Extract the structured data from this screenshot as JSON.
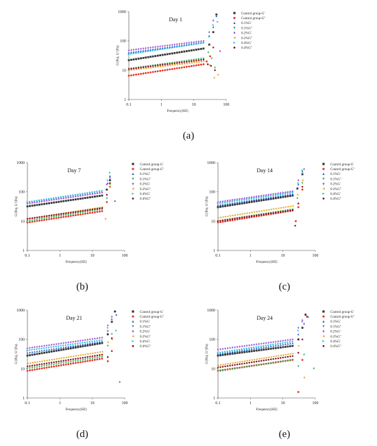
{
  "figure": {
    "captions": [
      "(a)",
      "(b)",
      "(c)",
      "(d)",
      "(e)"
    ]
  },
  "legend_entries": [
    {
      "label": "Control group-G'",
      "color": "#333333",
      "marker": "square"
    },
    {
      "label": "Control group-G''",
      "color": "#e8342a",
      "marker": "circle"
    },
    {
      "label": "0.1%G'",
      "color": "#1f5fc4",
      "marker": "triangle-up"
    },
    {
      "label": "0.1%G''",
      "color": "#22b14c",
      "marker": "triangle-down"
    },
    {
      "label": "0.2%G'",
      "color": "#a35bd6",
      "marker": "diamond"
    },
    {
      "label": "0.2%G''",
      "color": "#e0a21c",
      "marker": "triangle-left"
    },
    {
      "label": "0.4%G'",
      "color": "#22bde0",
      "marker": "triangle-right"
    },
    {
      "label": "0.4%G''",
      "color": "#8b1a2a",
      "marker": "hexagon"
    }
  ],
  "chart_data": [
    {
      "type": "scatter",
      "title": "Day 1",
      "xlabel": "Frequency(HZ)",
      "ylabel": "G'(Pa), G''(Pa)",
      "xscale": "log",
      "yscale": "log",
      "xlim": [
        0.1,
        100
      ],
      "ylim": [
        1,
        1000
      ],
      "xticks": [
        "0.1",
        "1",
        "10",
        "100"
      ],
      "yticks": [
        "1",
        "10",
        "100",
        "1000"
      ],
      "legend_position": "top-right",
      "series": [
        {
          "name": "Control group-G'",
          "low": 22,
          "high": 55,
          "tail": [
            [
              30,
              75
            ],
            [
              40,
              200
            ],
            [
              50,
              800
            ]
          ]
        },
        {
          "name": "Control group-G''",
          "low": 6.5,
          "high": 16,
          "tail": [
            [
              25,
              20
            ],
            [
              32,
              30
            ],
            [
              40,
              60
            ]
          ]
        },
        {
          "name": "0.1%G'",
          "low": 40,
          "high": 90,
          "tail": [
            [
              30,
              150
            ],
            [
              40,
              300
            ],
            [
              50,
              700
            ]
          ]
        },
        {
          "name": "0.1%G''",
          "low": 11,
          "high": 25,
          "tail": [
            [
              28,
              40
            ],
            [
              36,
              25
            ],
            [
              45,
              12
            ]
          ]
        },
        {
          "name": "0.2%G'",
          "low": 48,
          "high": 100,
          "tail": [
            [
              30,
              200
            ],
            [
              40,
              500
            ],
            [
              65,
              45
            ]
          ]
        },
        {
          "name": "0.2%G''",
          "low": 10,
          "high": 20,
          "tail": [
            [
              30,
              15
            ],
            [
              42,
              5.5
            ],
            [
              55,
              7
            ]
          ]
        },
        {
          "name": "0.4%G'",
          "low": 35,
          "high": 85,
          "tail": [
            [
              30,
              140
            ],
            [
              40,
              350
            ],
            [
              55,
              450
            ]
          ]
        },
        {
          "name": "0.4%G''",
          "low": 11,
          "high": 23,
          "tail": [
            [
              27,
              16
            ],
            [
              34,
              14
            ],
            [
              45,
              10
            ]
          ]
        }
      ]
    },
    {
      "type": "scatter",
      "title": "Day 7",
      "xlabel": "Frequency(HZ)",
      "ylabel": "G'(Pa), G''(Pa)",
      "xscale": "log",
      "yscale": "log",
      "xlim": [
        0.1,
        100
      ],
      "ylim": [
        1,
        1000
      ],
      "xticks": [
        "0.1",
        "1",
        "10",
        "100"
      ],
      "yticks": [
        "1",
        "10",
        "100",
        "1000"
      ],
      "legend_position": "top-right",
      "series": [
        {
          "name": "Control group-G'",
          "low": 32,
          "high": 75,
          "tail": [
            [
              28,
              120
            ],
            [
              35,
              250
            ]
          ]
        },
        {
          "name": "Control group-G''",
          "low": 9,
          "high": 22,
          "tail": [
            [
              28,
              45
            ],
            [
              35,
              150
            ]
          ]
        },
        {
          "name": "0.1%G'",
          "low": 42,
          "high": 100,
          "tail": [
            [
              30,
              200
            ],
            [
              35,
              350
            ],
            [
              50,
              50
            ]
          ]
        },
        {
          "name": "0.1%G''",
          "low": 10,
          "high": 25,
          "tail": [
            [
              28,
              60
            ],
            [
              35,
              180
            ]
          ]
        },
        {
          "name": "0.2%G'",
          "low": 40,
          "high": 95,
          "tail": [
            [
              28,
              180
            ],
            [
              35,
              300
            ]
          ]
        },
        {
          "name": "0.2%G''",
          "low": 12,
          "high": 30,
          "tail": [
            [
              25,
              12
            ],
            [
              35,
              150
            ]
          ]
        },
        {
          "name": "0.4%G'",
          "low": 45,
          "high": 110,
          "tail": [
            [
              30,
              250
            ],
            [
              35,
              450
            ]
          ]
        },
        {
          "name": "0.4%G''",
          "low": 12,
          "high": 28,
          "tail": [
            [
              28,
              80
            ],
            [
              35,
              200
            ]
          ]
        }
      ]
    },
    {
      "type": "scatter",
      "title": "Day 14",
      "xlabel": "Frequency(HZ)",
      "ylabel": "G'(Pa), G''(Pa)",
      "xscale": "log",
      "yscale": "log",
      "xlim": [
        0.1,
        100
      ],
      "ylim": [
        1,
        1000
      ],
      "xticks": [
        "0.1",
        "1",
        "10",
        "100"
      ],
      "yticks": [
        "1",
        "10",
        "100",
        "1000"
      ],
      "legend_position": "top-right",
      "series": [
        {
          "name": "Control group-G'",
          "low": 30,
          "high": 75,
          "tail": [
            [
              28,
              130
            ],
            [
              40,
              400
            ]
          ]
        },
        {
          "name": "Control group-G''",
          "low": 9,
          "high": 23,
          "tail": [
            [
              25,
              10
            ],
            [
              30,
              30
            ],
            [
              40,
              120
            ]
          ]
        },
        {
          "name": "0.1%G'",
          "low": 35,
          "high": 85,
          "tail": [
            [
              30,
              180
            ],
            [
              40,
              500
            ]
          ]
        },
        {
          "name": "0.1%G''",
          "low": 10,
          "high": 25,
          "tail": [
            [
              28,
              60
            ],
            [
              40,
              200
            ]
          ]
        },
        {
          "name": "0.2%G'",
          "low": 45,
          "high": 105,
          "tail": [
            [
              30,
              250
            ],
            [
              45,
              600
            ]
          ]
        },
        {
          "name": "0.2%G''",
          "low": 13,
          "high": 33,
          "tail": [
            [
              28,
              80
            ],
            [
              40,
              250
            ]
          ]
        },
        {
          "name": "0.4%G'",
          "low": 40,
          "high": 95,
          "tail": [
            [
              30,
              200
            ],
            [
              40,
              550
            ]
          ]
        },
        {
          "name": "0.4%G''",
          "low": 10,
          "high": 24,
          "tail": [
            [
              24,
              7
            ],
            [
              30,
              40
            ],
            [
              40,
              150
            ]
          ]
        }
      ]
    },
    {
      "type": "scatter",
      "title": "Day 21",
      "xlabel": "Frequency(HZ)",
      "ylabel": "G'(Pa), G''(Pa)",
      "xscale": "log",
      "yscale": "log",
      "xlim": [
        0.1,
        100
      ],
      "ylim": [
        1,
        1000
      ],
      "xticks": [
        "0.1",
        "1",
        "10",
        "100"
      ],
      "yticks": [
        "1",
        "10",
        "100",
        "1000"
      ],
      "legend_position": "top-right",
      "series": [
        {
          "name": "Control group-G'",
          "low": 28,
          "high": 75,
          "tail": [
            [
              30,
              150
            ],
            [
              40,
              400
            ],
            [
              50,
              900
            ]
          ]
        },
        {
          "name": "Control group-G''",
          "low": 8.5,
          "high": 22,
          "tail": [
            [
              30,
              18
            ],
            [
              40,
              40
            ]
          ]
        },
        {
          "name": "0.1%G'",
          "low": 35,
          "high": 85,
          "tail": [
            [
              30,
              200
            ],
            [
              40,
              500
            ],
            [
              55,
              700
            ]
          ]
        },
        {
          "name": "0.1%G''",
          "low": 10,
          "high": 25,
          "tail": [
            [
              30,
              60
            ],
            [
              40,
              150
            ]
          ]
        },
        {
          "name": "0.2%G'",
          "low": 50,
          "high": 115,
          "tail": [
            [
              30,
              300
            ],
            [
              40,
              600
            ],
            [
              70,
              3.5
            ]
          ]
        },
        {
          "name": "0.2%G''",
          "low": 15,
          "high": 38,
          "tail": [
            [
              30,
              80
            ],
            [
              40,
              100
            ]
          ]
        },
        {
          "name": "0.4%G'",
          "low": 42,
          "high": 95,
          "tail": [
            [
              30,
              250
            ],
            [
              40,
              500
            ],
            [
              55,
              200
            ]
          ]
        },
        {
          "name": "0.4%G''",
          "low": 12,
          "high": 30,
          "tail": [
            [
              30,
              25
            ],
            [
              40,
              110
            ]
          ]
        }
      ]
    },
    {
      "type": "scatter",
      "title": "Day 24",
      "xlabel": "Frequency(HZ)",
      "ylabel": "G'(Pa), G''(Pa)",
      "xscale": "log",
      "yscale": "log",
      "xlim": [
        0.1,
        100
      ],
      "ylim": [
        1,
        1000
      ],
      "xticks": [
        "0.1",
        "1",
        "10",
        "100"
      ],
      "yticks": [
        "1",
        "10",
        "100",
        "1000"
      ],
      "legend_position": "top-right",
      "series": [
        {
          "name": "Control group-G'",
          "low": 28,
          "high": 60,
          "tail": [
            [
              30,
              100
            ],
            [
              40,
              250
            ],
            [
              50,
              700
            ]
          ]
        },
        {
          "name": "Control group-G''",
          "low": 8.5,
          "high": 20,
          "tail": [
            [
              30,
              1.6
            ],
            [
              40,
              20
            ],
            [
              55,
              600
            ]
          ]
        },
        {
          "name": "0.1%G'",
          "low": 32,
          "high": 75,
          "tail": [
            [
              30,
              150
            ],
            [
              45,
              350
            ],
            [
              60,
              600
            ]
          ]
        },
        {
          "name": "0.1%G''",
          "low": 8,
          "high": 20,
          "tail": [
            [
              30,
              12
            ],
            [
              45,
              30
            ],
            [
              90,
              10
            ]
          ]
        },
        {
          "name": "0.2%G'",
          "low": 45,
          "high": 100,
          "tail": [
            [
              30,
              250
            ],
            [
              40,
              450
            ]
          ]
        },
        {
          "name": "0.2%G''",
          "low": 13,
          "high": 33,
          "tail": [
            [
              30,
              60
            ],
            [
              45,
              5
            ]
          ]
        },
        {
          "name": "0.4%G'",
          "low": 35,
          "high": 85,
          "tail": [
            [
              30,
              200
            ],
            [
              40,
              400
            ]
          ]
        },
        {
          "name": "0.4%G''",
          "low": 11,
          "high": 27,
          "tail": [
            [
              30,
              35
            ],
            [
              40,
              100
            ]
          ]
        }
      ]
    }
  ]
}
